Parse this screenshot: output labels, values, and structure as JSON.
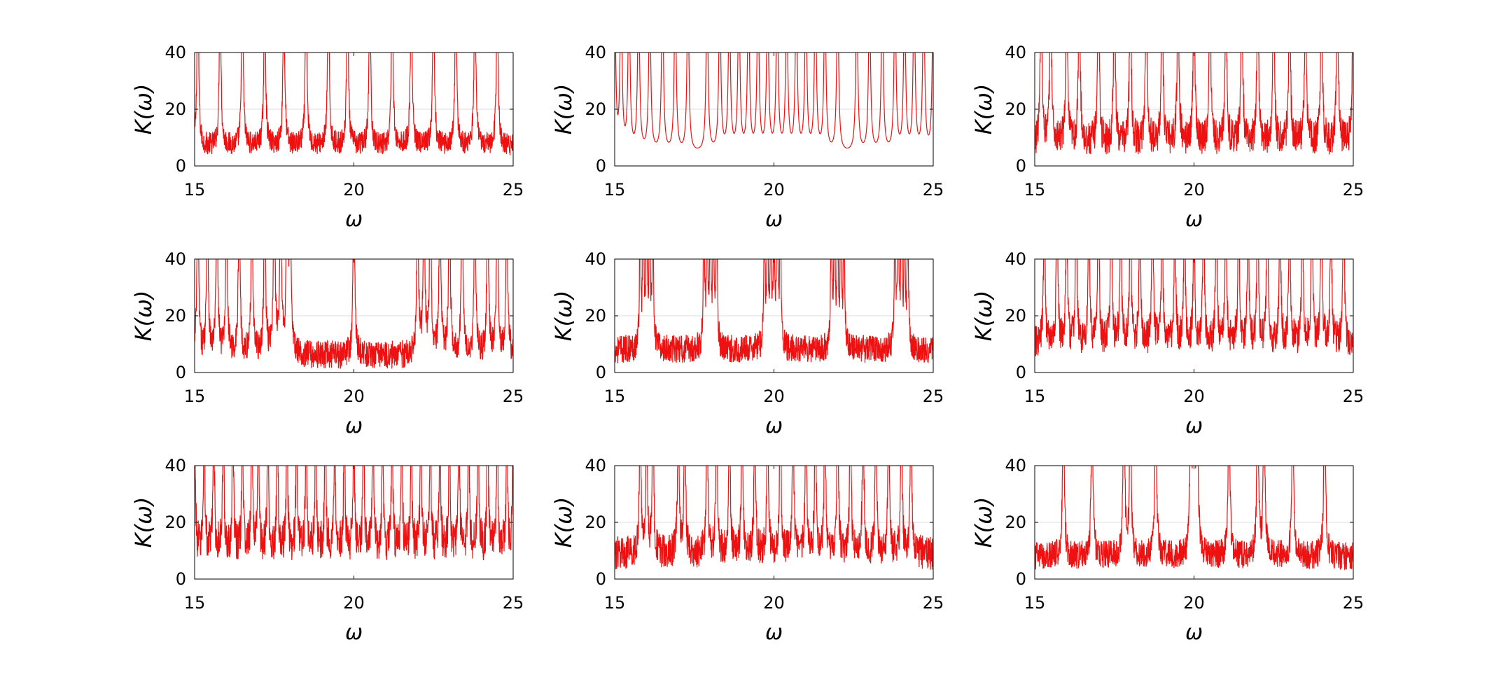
{
  "figure": {
    "background": "#ffffff",
    "line_color": "#ee1111",
    "grid_color": "#dddddd",
    "axis_color": "#000000"
  },
  "chart_data": [
    {
      "type": "line",
      "row": 1,
      "col": 1,
      "xlabel": "ω",
      "ylabel": "K(ω)",
      "xlim": [
        15,
        25
      ],
      "ylim": [
        0,
        40
      ],
      "xticks": [
        "15",
        "20",
        "25"
      ],
      "yticks": [
        "0",
        "20",
        "40"
      ],
      "grid": "y=20 only",
      "pattern": {
        "peaks": [
          15.1,
          15.8,
          16.5,
          17.2,
          17.8,
          18.5,
          19.2,
          19.8,
          20.5,
          21.2,
          21.8,
          22.5,
          23.2,
          23.8,
          24.5
        ],
        "baseline": 7,
        "noise": 4,
        "width": 0.03
      }
    },
    {
      "type": "line",
      "row": 1,
      "col": 2,
      "xlabel": "ω",
      "ylabel": "K(ω)",
      "xlim": [
        15,
        25
      ],
      "ylim": [
        0,
        40
      ],
      "xticks": [
        "15",
        "20",
        "25"
      ],
      "yticks": [
        "0",
        "20",
        "40"
      ],
      "grid": "y=20 only",
      "pattern": {
        "peaks": [
          15.0,
          15.2,
          15.45,
          15.75,
          16.1,
          16.5,
          16.9,
          17.3,
          17.9,
          18.3,
          18.6,
          18.9,
          19.2,
          19.5,
          19.8,
          20.1,
          20.4,
          20.7,
          21.0,
          21.3,
          21.6,
          22.0,
          22.6,
          23.0,
          23.4,
          23.8,
          24.1,
          24.4,
          24.7,
          25.0
        ],
        "baseline": 4,
        "noise": 0,
        "width": 0.035
      }
    },
    {
      "type": "line",
      "row": 1,
      "col": 3,
      "xlabel": "ω",
      "ylabel": "K(ω)",
      "xlim": [
        15,
        25
      ],
      "ylim": [
        0,
        40
      ],
      "xticks": [
        "15",
        "20",
        "25"
      ],
      "yticks": [
        "0",
        "20",
        "40"
      ],
      "grid": "y=20 only",
      "pattern": {
        "peaks": [
          15.2,
          15.5,
          16.0,
          16.4,
          17.0,
          17.5,
          18.0,
          18.5,
          19.0,
          19.5,
          20.0,
          20.5,
          21.0,
          21.5,
          22.0,
          22.5,
          23.0,
          23.5,
          24.0,
          24.5,
          25.0
        ],
        "baseline": 8,
        "noise": 6,
        "width": 0.03
      }
    },
    {
      "type": "line",
      "row": 2,
      "col": 1,
      "xlabel": "ω",
      "ylabel": "K(ω)",
      "xlim": [
        15,
        25
      ],
      "ylim": [
        0,
        40
      ],
      "xticks": [
        "15",
        "20",
        "25"
      ],
      "yticks": [
        "0",
        "20",
        "40"
      ],
      "grid": "y=20 only",
      "pattern": {
        "peaks": [
          15.1,
          15.4,
          15.7,
          16.0,
          16.4,
          16.8,
          17.2,
          17.5,
          17.7,
          17.9,
          18.0,
          20.0,
          22.0,
          22.2,
          22.4,
          22.7,
          23.0,
          23.4,
          23.8,
          24.2,
          24.5,
          24.8
        ],
        "baseline": 6,
        "noise": 5,
        "width": 0.03
      }
    },
    {
      "type": "line",
      "row": 2,
      "col": 2,
      "xlabel": "ω",
      "ylabel": "K(ω)",
      "xlim": [
        15,
        25
      ],
      "ylim": [
        0,
        40
      ],
      "xticks": [
        "15",
        "20",
        "25"
      ],
      "yticks": [
        "0",
        "20",
        "40"
      ],
      "grid": "y=20 only",
      "pattern": {
        "peaks": [
          15.8,
          15.9,
          16.0,
          16.1,
          16.2,
          17.8,
          17.9,
          18.0,
          18.1,
          18.2,
          19.7,
          19.8,
          19.9,
          20.0,
          20.1,
          20.2,
          21.8,
          21.9,
          22.0,
          22.1,
          22.2,
          23.8,
          23.9,
          24.0,
          24.1,
          24.2
        ],
        "baseline": 8,
        "noise": 5,
        "width": 0.02
      }
    },
    {
      "type": "line",
      "row": 2,
      "col": 3,
      "xlabel": "ω",
      "ylabel": "K(ω)",
      "xlim": [
        15,
        25
      ],
      "ylim": [
        0,
        40
      ],
      "xticks": [
        "15",
        "20",
        "25"
      ],
      "yticks": [
        "0",
        "20",
        "40"
      ],
      "grid": "y=20 only",
      "pattern": {
        "peaks": [
          15.3,
          15.7,
          16.0,
          16.3,
          16.7,
          17.0,
          17.4,
          17.7,
          18.0,
          18.3,
          18.7,
          19.0,
          19.4,
          19.7,
          20.0,
          20.3,
          20.7,
          21.0,
          21.4,
          21.7,
          22.0,
          22.3,
          22.7,
          23.0,
          23.4,
          23.7,
          24.0,
          24.3,
          24.7
        ],
        "baseline": 10,
        "noise": 6,
        "width": 0.025
      }
    },
    {
      "type": "line",
      "row": 3,
      "col": 1,
      "xlabel": "ω",
      "ylabel": "K(ω)",
      "xlim": [
        15,
        25
      ],
      "ylim": [
        0,
        40
      ],
      "xticks": [
        "15",
        "20",
        "25"
      ],
      "yticks": [
        "0",
        "20",
        "40"
      ],
      "grid": "y=20 only",
      "pattern": {
        "peaks": [
          15.0,
          15.3,
          15.6,
          15.9,
          16.2,
          16.5,
          16.8,
          17.0,
          17.3,
          17.6,
          17.9,
          18.2,
          18.5,
          18.8,
          19.1,
          19.4,
          19.7,
          20.0,
          20.3,
          20.6,
          20.9,
          21.2,
          21.5,
          21.8,
          22.1,
          22.4,
          22.7,
          23.0,
          23.3,
          23.6,
          23.9,
          24.2,
          24.5,
          24.8,
          25.0
        ],
        "baseline": 11,
        "noise": 7,
        "width": 0.02
      }
    },
    {
      "type": "line",
      "row": 3,
      "col": 2,
      "xlabel": "ω",
      "ylabel": "K(ω)",
      "xlim": [
        15,
        25
      ],
      "ylim": [
        0,
        40
      ],
      "xticks": [
        "15",
        "20",
        "25"
      ],
      "yticks": [
        "0",
        "20",
        "40"
      ],
      "grid": "y=20 only",
      "pattern": {
        "peaks": [
          15.8,
          16.0,
          16.2,
          17.0,
          17.2,
          17.9,
          18.2,
          18.6,
          19.0,
          19.4,
          19.8,
          20.2,
          20.6,
          21.0,
          21.3,
          21.6,
          22.0,
          22.4,
          22.8,
          23.2,
          23.6,
          24.0,
          24.3
        ],
        "baseline": 9,
        "noise": 6,
        "width": 0.025
      }
    },
    {
      "type": "line",
      "row": 3,
      "col": 3,
      "xlabel": "ω",
      "ylabel": "K(ω)",
      "xlim": [
        15,
        25
      ],
      "ylim": [
        0,
        40
      ],
      "xticks": [
        "15",
        "20",
        "25"
      ],
      "yticks": [
        "0",
        "20",
        "40"
      ],
      "grid": "y=20 only",
      "pattern": {
        "peaks": [
          15.9,
          16.8,
          17.8,
          18.0,
          18.8,
          19.9,
          20.0,
          20.1,
          21.1,
          22.0,
          22.2,
          23.1,
          24.1
        ],
        "baseline": 8,
        "noise": 5,
        "width": 0.03
      }
    }
  ]
}
